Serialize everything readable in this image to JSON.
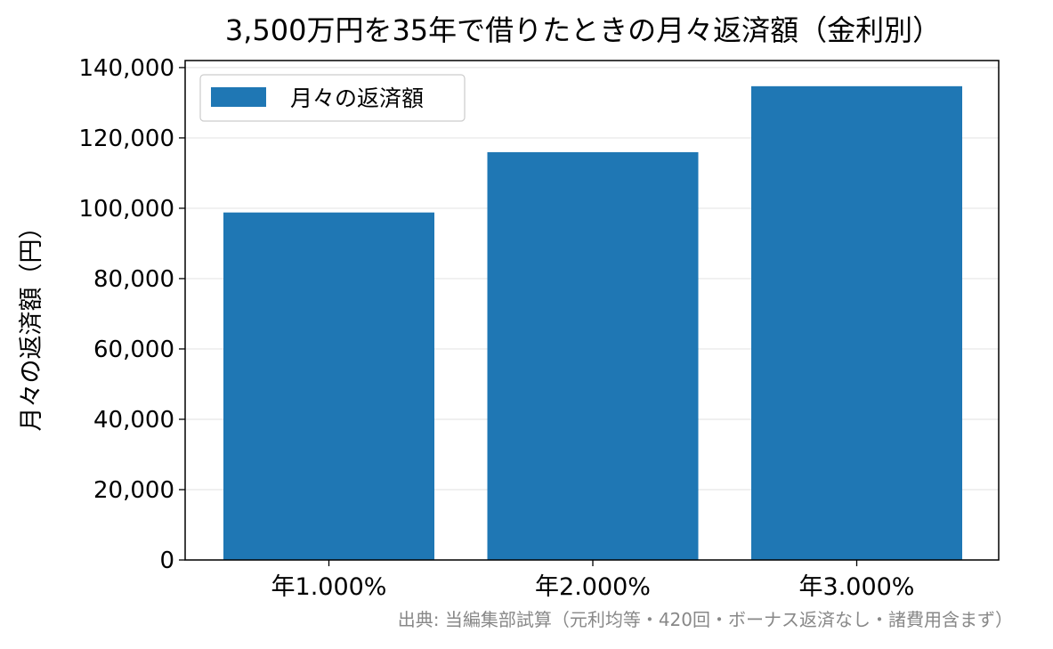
{
  "chart_data": {
    "type": "bar",
    "title": "3,500万円を35年で借りたときの月々返済額（金利別）",
    "xlabel": "",
    "ylabel": "月々の返済額（円）",
    "categories": [
      "年1.000%",
      "年2.000%",
      "年3.000%"
    ],
    "series": [
      {
        "name": "月々の返済額",
        "values": [
          98800,
          115950,
          134700
        ]
      }
    ],
    "ylim": [
      0,
      142000
    ],
    "yticks": [
      0,
      20000,
      40000,
      60000,
      80000,
      100000,
      120000,
      140000
    ],
    "ytick_labels": [
      "0",
      "20,000",
      "40,000",
      "60,000",
      "80,000",
      "100,000",
      "120,000",
      "140,000"
    ],
    "grid": "horizontal",
    "legend_position": "top-left",
    "bar_color": "#1f77b4",
    "source_note": "出典: 当編集部試算（元利均等・420回・ボーナス返済なし・諸費用含まず）"
  }
}
